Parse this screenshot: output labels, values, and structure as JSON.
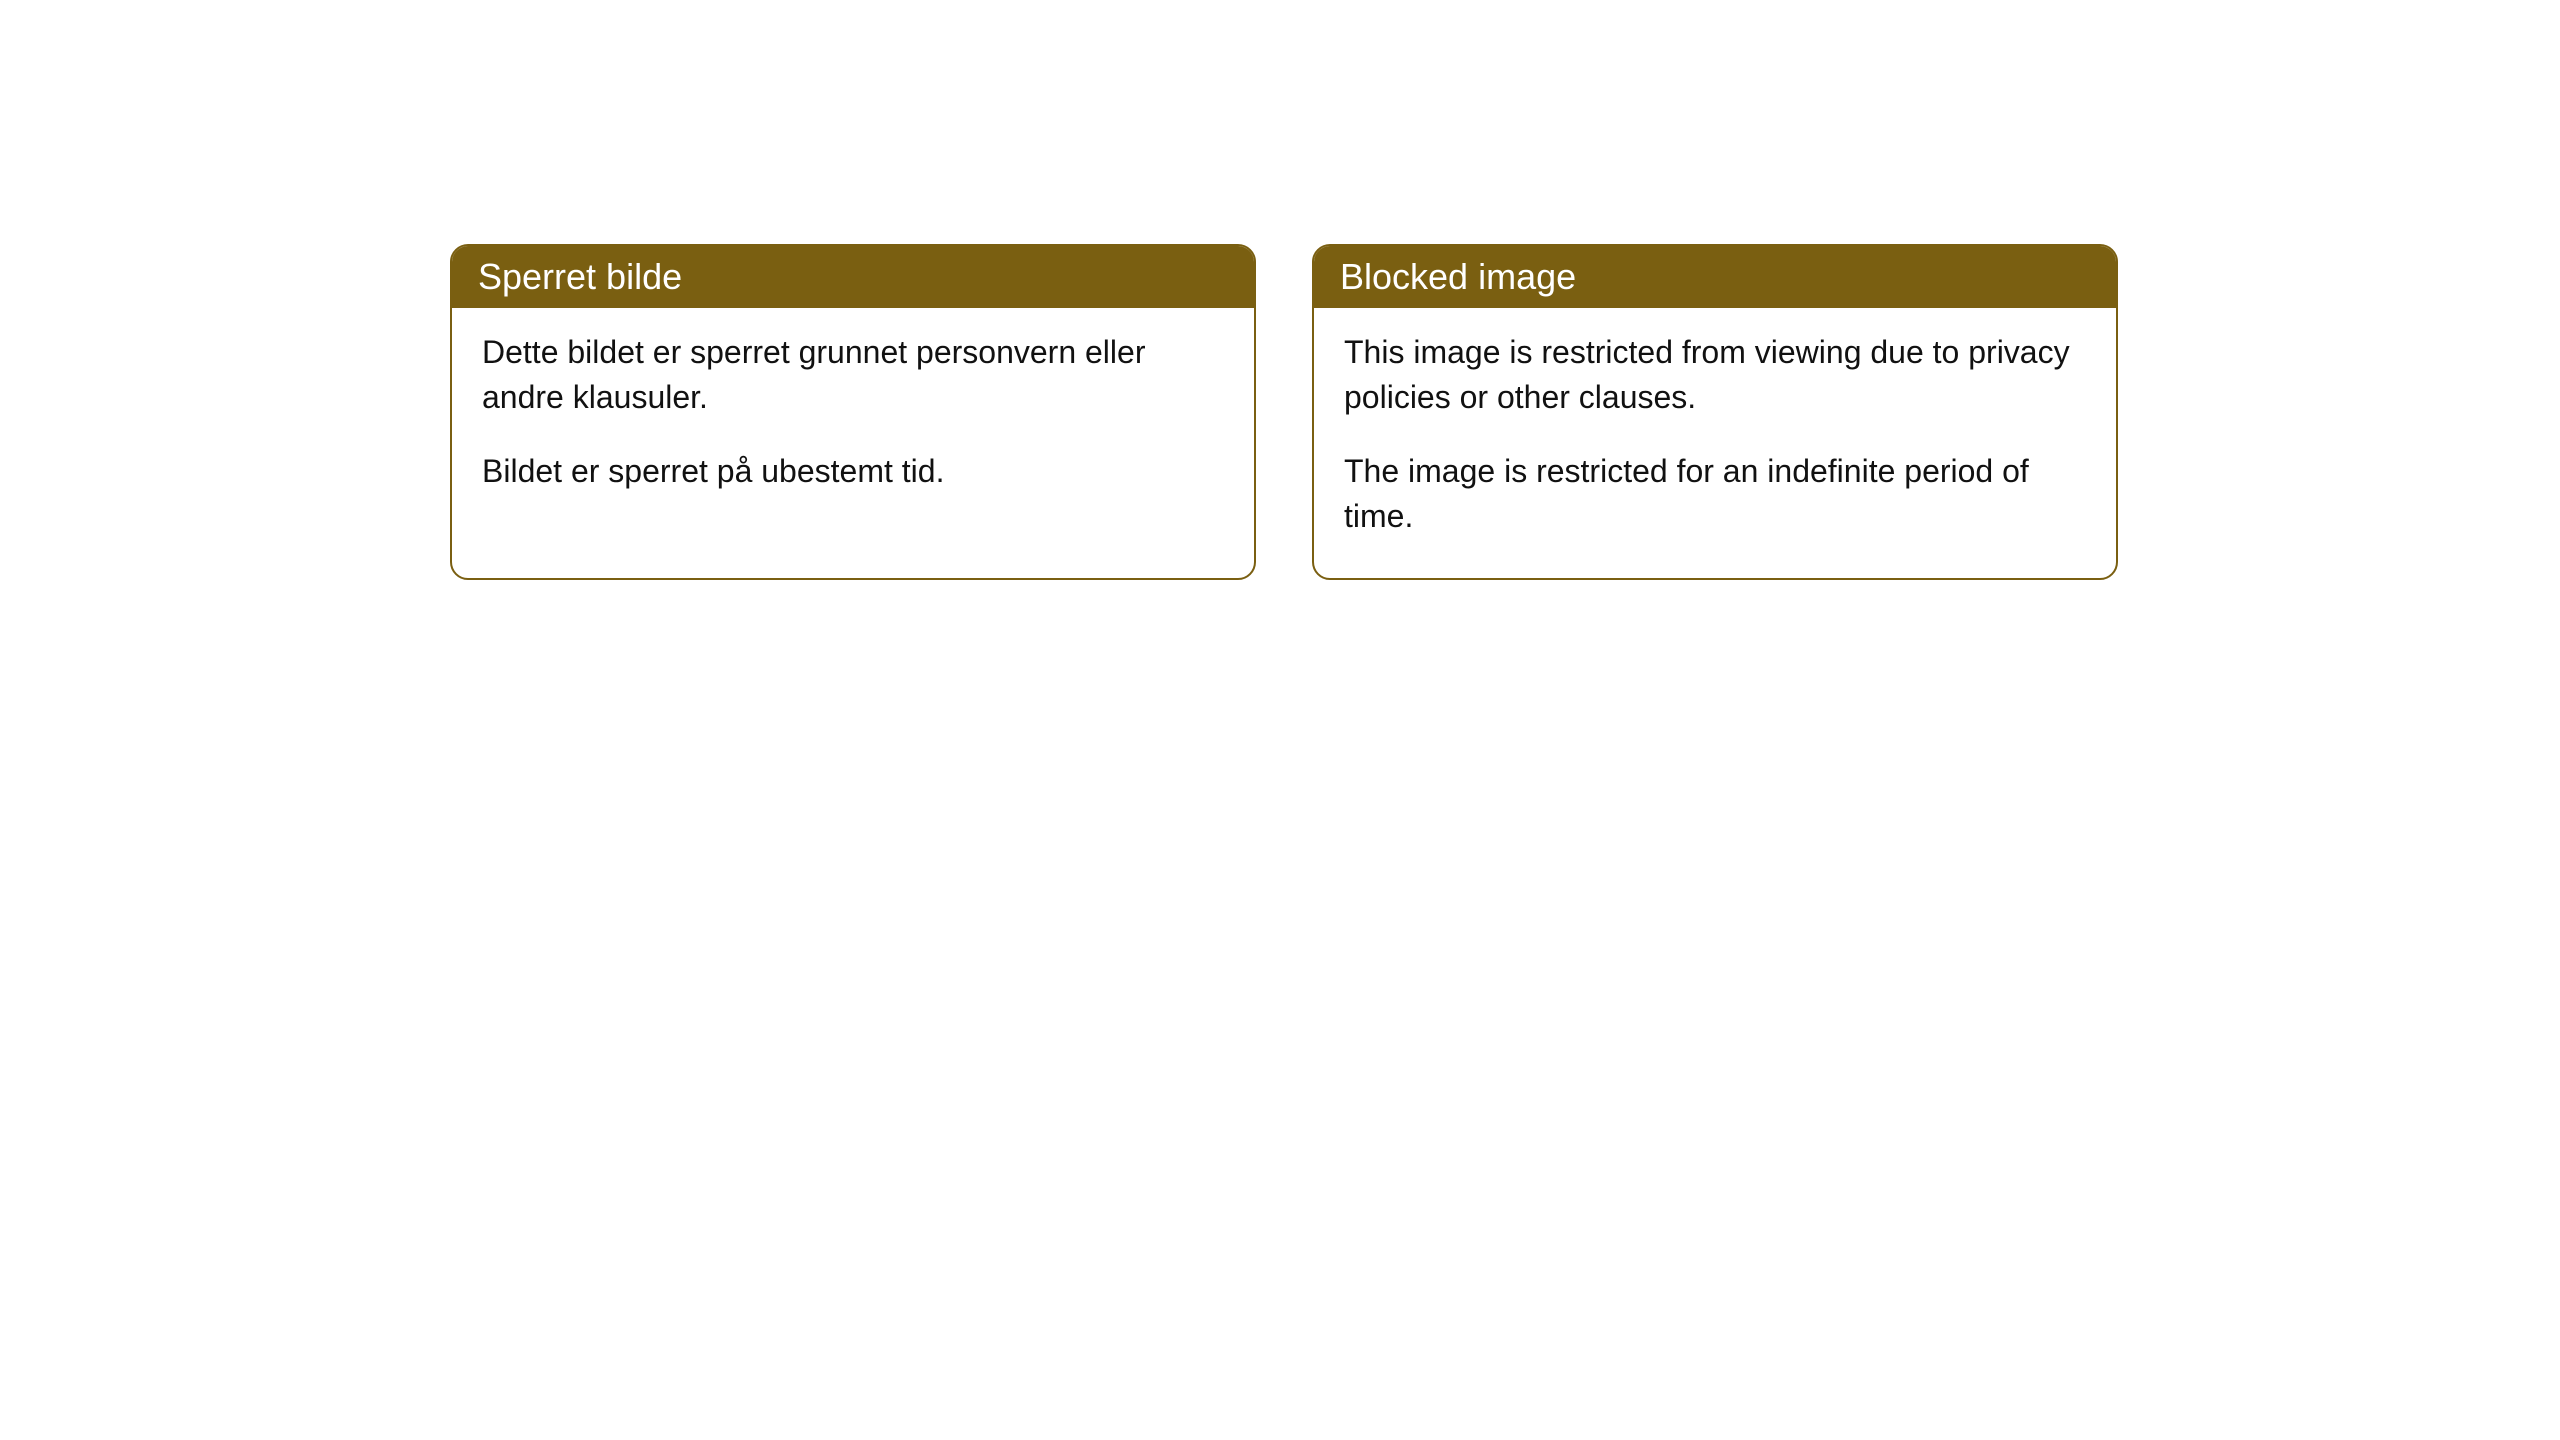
{
  "cards": [
    {
      "title": "Sperret bilde",
      "paragraph1": "Dette bildet er sperret grunnet personvern eller andre klausuler.",
      "paragraph2": "Bildet er sperret på ubestemt tid."
    },
    {
      "title": "Blocked image",
      "paragraph1": "This image is restricted from viewing due to privacy policies or other clauses.",
      "paragraph2": "The image is restricted for an indefinite period of time."
    }
  ],
  "styling": {
    "header_background": "#7a5f11",
    "header_text_color": "#ffffff",
    "border_color": "#7a5f11",
    "body_background": "#ffffff",
    "body_text_color": "#111111",
    "border_radius": 18,
    "title_fontsize": 36,
    "body_fontsize": 32
  }
}
